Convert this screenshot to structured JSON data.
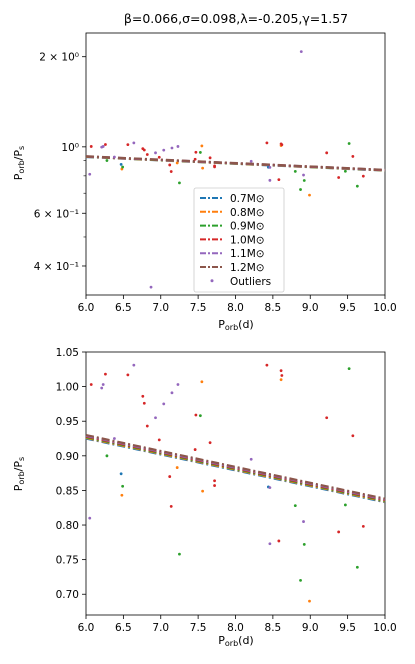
{
  "figure": {
    "title": "β=0.066,σ=0.098,λ=-0.205,γ=1.57"
  },
  "chart_data": [
    {
      "type": "scatter",
      "panel": "top",
      "title": "β=0.066,σ=0.098,λ=-0.205,γ=1.57",
      "xlabel": "P_orb(d)",
      "ylabel": "P_orb/P_s",
      "xlim": [
        6.0,
        10.0
      ],
      "ylim": [
        0.32,
        2.4
      ],
      "yscale": "log",
      "x_ticks": [
        6.0,
        6.5,
        7.0,
        7.5,
        8.0,
        8.5,
        9.0,
        9.5,
        10.0
      ],
      "x_tick_labels": [
        "6.0",
        "6.5",
        "7.0",
        "7.5",
        "8.0",
        "8.5",
        "9.0",
        "9.5",
        "10.0"
      ],
      "y_ticks": [
        0.4,
        0.6,
        1.0,
        2.0
      ],
      "y_tick_labels": [
        "4 × 10⁻¹",
        "6 × 10⁻¹",
        "10⁰",
        "2 × 10⁰"
      ],
      "grid": false,
      "legend_position": "lower-center",
      "legend": [
        {
          "label": "0.7M⊙",
          "color": "#1f77b4",
          "kind": "line"
        },
        {
          "label": "0.8M⊙",
          "color": "#ff7f0e",
          "kind": "line"
        },
        {
          "label": "0.9M⊙",
          "color": "#2ca02c",
          "kind": "line"
        },
        {
          "label": "1.0M⊙",
          "color": "#d62728",
          "kind": "line"
        },
        {
          "label": "1.1M⊙",
          "color": "#9467bd",
          "kind": "line"
        },
        {
          "label": "1.2M⊙",
          "color": "#8c564b",
          "kind": "line"
        },
        {
          "label": "Outliers",
          "color": "#9467bd",
          "kind": "point"
        }
      ],
      "series": [
        {
          "name": "0.7M⊙",
          "color": "#1f77b4",
          "x": [
            6.0,
            10.0
          ],
          "y": [
            0.925,
            0.833
          ]
        },
        {
          "name": "0.8M⊙",
          "color": "#ff7f0e",
          "x": [
            6.0,
            10.0
          ],
          "y": [
            0.926,
            0.834
          ]
        },
        {
          "name": "0.9M⊙",
          "color": "#2ca02c",
          "x": [
            6.0,
            10.0
          ],
          "y": [
            0.927,
            0.835
          ]
        },
        {
          "name": "1.0M⊙",
          "color": "#d62728",
          "x": [
            6.0,
            10.0
          ],
          "y": [
            0.928,
            0.836
          ]
        },
        {
          "name": "1.1M⊙",
          "color": "#9467bd",
          "x": [
            6.0,
            10.0
          ],
          "y": [
            0.929,
            0.837
          ]
        },
        {
          "name": "1.2M⊙",
          "color": "#8c564b",
          "x": [
            6.0,
            10.0
          ],
          "y": [
            0.93,
            0.838
          ]
        }
      ],
      "points": [
        {
          "x": 6.07,
          "y": 1.003,
          "c": "#d62728"
        },
        {
          "x": 6.05,
          "y": 0.81,
          "c": "#9467bd"
        },
        {
          "x": 6.21,
          "y": 0.998,
          "c": "#9467bd"
        },
        {
          "x": 6.23,
          "y": 1.003,
          "c": "#9467bd"
        },
        {
          "x": 6.26,
          "y": 1.018,
          "c": "#d62728"
        },
        {
          "x": 6.28,
          "y": 0.9,
          "c": "#2ca02c"
        },
        {
          "x": 6.38,
          "y": 0.925,
          "c": "#9467bd"
        },
        {
          "x": 6.47,
          "y": 0.874,
          "c": "#1f77b4"
        },
        {
          "x": 6.48,
          "y": 0.843,
          "c": "#ff7f0e"
        },
        {
          "x": 6.49,
          "y": 0.856,
          "c": "#2ca02c"
        },
        {
          "x": 6.56,
          "y": 1.017,
          "c": "#d62728"
        },
        {
          "x": 6.64,
          "y": 1.031,
          "c": "#9467bd"
        },
        {
          "x": 6.76,
          "y": 0.986,
          "c": "#d62728"
        },
        {
          "x": 6.78,
          "y": 0.976,
          "c": "#d62728"
        },
        {
          "x": 6.82,
          "y": 0.943,
          "c": "#d62728"
        },
        {
          "x": 6.87,
          "y": 0.34,
          "c": "#9467bd"
        },
        {
          "x": 6.93,
          "y": 0.955,
          "c": "#9467bd"
        },
        {
          "x": 6.98,
          "y": 0.923,
          "c": "#d62728"
        },
        {
          "x": 7.04,
          "y": 0.975,
          "c": "#9467bd"
        },
        {
          "x": 7.12,
          "y": 0.87,
          "c": "#d62728"
        },
        {
          "x": 7.14,
          "y": 0.827,
          "c": "#d62728"
        },
        {
          "x": 7.15,
          "y": 0.991,
          "c": "#9467bd"
        },
        {
          "x": 7.22,
          "y": 0.883,
          "c": "#ff7f0e"
        },
        {
          "x": 7.23,
          "y": 1.003,
          "c": "#9467bd"
        },
        {
          "x": 7.25,
          "y": 0.758,
          "c": "#2ca02c"
        },
        {
          "x": 7.46,
          "y": 0.909,
          "c": "#d62728"
        },
        {
          "x": 7.47,
          "y": 0.959,
          "c": "#d62728"
        },
        {
          "x": 7.53,
          "y": 0.958,
          "c": "#2ca02c"
        },
        {
          "x": 7.55,
          "y": 1.007,
          "c": "#ff7f0e"
        },
        {
          "x": 7.56,
          "y": 0.849,
          "c": "#ff7f0e"
        },
        {
          "x": 7.66,
          "y": 0.919,
          "c": "#d62728"
        },
        {
          "x": 7.72,
          "y": 0.864,
          "c": "#d62728"
        },
        {
          "x": 7.72,
          "y": 0.857,
          "c": "#d62728"
        },
        {
          "x": 8.21,
          "y": 0.895,
          "c": "#9467bd"
        },
        {
          "x": 8.42,
          "y": 1.031,
          "c": "#d62728"
        },
        {
          "x": 8.44,
          "y": 0.855,
          "c": "#1f77b4"
        },
        {
          "x": 8.46,
          "y": 0.854,
          "c": "#9467bd"
        },
        {
          "x": 8.46,
          "y": 0.773,
          "c": "#9467bd"
        },
        {
          "x": 8.58,
          "y": 0.777,
          "c": "#d62728"
        },
        {
          "x": 8.61,
          "y": 1.023,
          "c": "#d62728"
        },
        {
          "x": 8.61,
          "y": 1.01,
          "c": "#ff7f0e"
        },
        {
          "x": 8.62,
          "y": 1.016,
          "c": "#d62728"
        },
        {
          "x": 8.8,
          "y": 0.828,
          "c": "#2ca02c"
        },
        {
          "x": 8.87,
          "y": 0.72,
          "c": "#2ca02c"
        },
        {
          "x": 8.88,
          "y": 2.08,
          "c": "#9467bd"
        },
        {
          "x": 8.91,
          "y": 0.805,
          "c": "#9467bd"
        },
        {
          "x": 8.92,
          "y": 0.772,
          "c": "#2ca02c"
        },
        {
          "x": 8.99,
          "y": 0.69,
          "c": "#ff7f0e"
        },
        {
          "x": 9.22,
          "y": 0.955,
          "c": "#d62728"
        },
        {
          "x": 9.38,
          "y": 0.79,
          "c": "#d62728"
        },
        {
          "x": 9.47,
          "y": 0.829,
          "c": "#2ca02c"
        },
        {
          "x": 9.52,
          "y": 1.026,
          "c": "#2ca02c"
        },
        {
          "x": 9.57,
          "y": 0.929,
          "c": "#d62728"
        },
        {
          "x": 9.63,
          "y": 0.739,
          "c": "#2ca02c"
        },
        {
          "x": 9.71,
          "y": 0.798,
          "c": "#d62728"
        }
      ]
    },
    {
      "type": "scatter",
      "panel": "bottom",
      "title": "",
      "xlabel": "P_orb(d)",
      "ylabel": "P_orb/P_s",
      "xlim": [
        6.0,
        10.0
      ],
      "ylim": [
        0.67,
        1.05
      ],
      "yscale": "linear",
      "x_ticks": [
        6.0,
        6.5,
        7.0,
        7.5,
        8.0,
        8.5,
        9.0,
        9.5,
        10.0
      ],
      "x_tick_labels": [
        "6.0",
        "6.5",
        "7.0",
        "7.5",
        "8.0",
        "8.5",
        "9.0",
        "9.5",
        "10.0"
      ],
      "y_ticks": [
        0.7,
        0.75,
        0.8,
        0.85,
        0.9,
        0.95,
        1.0,
        1.05
      ],
      "y_tick_labels": [
        "0.70",
        "0.75",
        "0.80",
        "0.85",
        "0.90",
        "0.95",
        "1.00",
        "1.05"
      ],
      "grid": false
    }
  ]
}
